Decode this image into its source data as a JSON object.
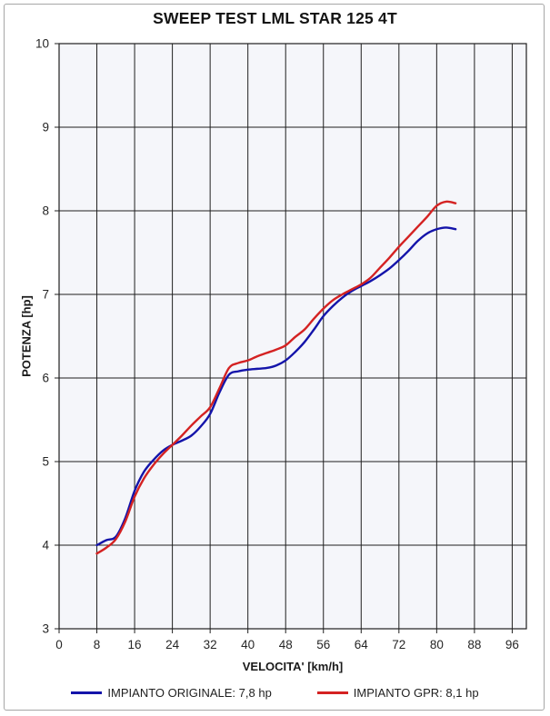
{
  "page": {
    "frame_color": "#a6a6a6",
    "background": "#ffffff"
  },
  "chart_data": {
    "type": "line",
    "title": "SWEEP TEST LML STAR 125 4T",
    "xlabel": "VELOCITA' [km/h]",
    "ylabel": "POTENZA [hp]",
    "xlim": [
      0,
      99
    ],
    "ylim": [
      3,
      10
    ],
    "x_ticks": [
      0,
      8,
      16,
      24,
      32,
      40,
      48,
      56,
      64,
      72,
      80,
      88,
      96
    ],
    "y_ticks": [
      3,
      4,
      5,
      6,
      7,
      8,
      9,
      10
    ],
    "grid": "both",
    "plot_background": "#f5f6fa",
    "gridline_color": "#1f1f1f",
    "tick_label_color": "#262626",
    "legend_position": "bottom",
    "x": [
      8,
      10,
      12,
      14,
      16,
      18,
      20,
      22,
      24,
      26,
      28,
      30,
      32,
      34,
      36,
      38,
      40,
      42,
      44,
      46,
      48,
      50,
      52,
      54,
      56,
      58,
      60,
      62,
      64,
      66,
      68,
      70,
      72,
      74,
      76,
      78,
      80,
      82,
      84
    ],
    "series": [
      {
        "name": "IMPIANTO ORIGINALE",
        "legend": "IMPIANTO ORIGINALE: 7,8 hp",
        "max_hp": "7,8",
        "color": "#1414aa",
        "values": [
          4.0,
          4.06,
          4.1,
          4.32,
          4.65,
          4.88,
          5.02,
          5.13,
          5.2,
          5.25,
          5.31,
          5.42,
          5.57,
          5.83,
          6.04,
          6.08,
          6.1,
          6.11,
          6.12,
          6.15,
          6.21,
          6.31,
          6.43,
          6.58,
          6.74,
          6.86,
          6.96,
          7.04,
          7.1,
          7.16,
          7.23,
          7.31,
          7.41,
          7.52,
          7.64,
          7.73,
          7.78,
          7.8,
          7.78
        ]
      },
      {
        "name": "IMPIANTO GPR",
        "legend": "IMPIANTO GPR: 8,1 hp",
        "max_hp": "8,1",
        "color": "#d42222",
        "values": [
          3.9,
          3.97,
          4.07,
          4.28,
          4.58,
          4.8,
          4.96,
          5.09,
          5.2,
          5.31,
          5.43,
          5.54,
          5.65,
          5.88,
          6.12,
          6.18,
          6.21,
          6.26,
          6.3,
          6.34,
          6.39,
          6.49,
          6.58,
          6.71,
          6.83,
          6.93,
          7.0,
          7.06,
          7.12,
          7.2,
          7.32,
          7.44,
          7.57,
          7.69,
          7.81,
          7.93,
          8.06,
          8.11,
          8.09
        ]
      }
    ]
  }
}
